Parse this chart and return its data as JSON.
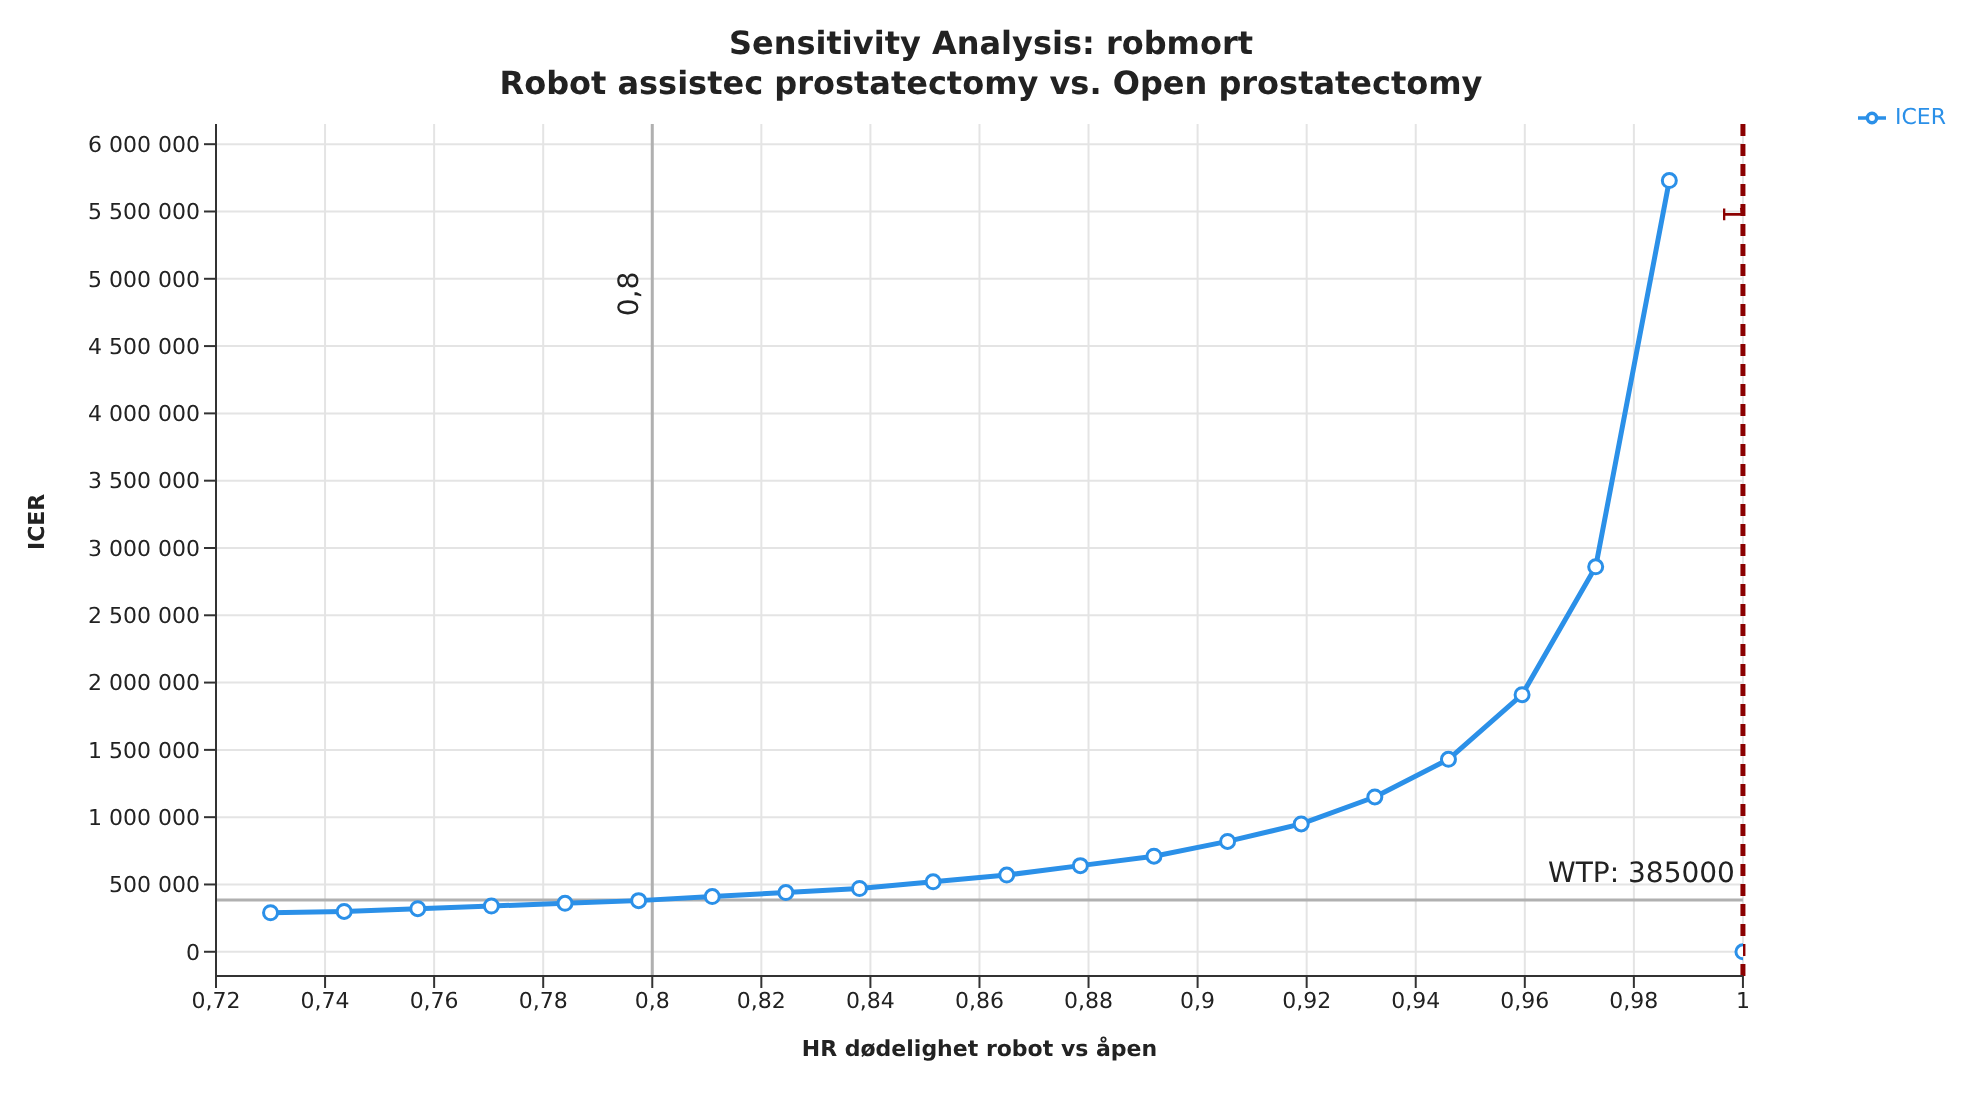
{
  "chart_data": {
    "type": "line",
    "title": "Sensitivity Analysis: robmort",
    "subtitle": "Robot assistec prostatectomy vs. Open prostatectomy",
    "xlabel": "HR dødelighet robot vs åpen",
    "ylabel": "ICER",
    "x": [
      0.73,
      0.7435,
      0.757,
      0.7705,
      0.784,
      0.7975,
      0.811,
      0.8245,
      0.838,
      0.8515,
      0.865,
      0.8785,
      0.892,
      0.9055,
      0.919,
      0.9325,
      0.946,
      0.9595,
      0.973,
      0.9865
    ],
    "series": [
      {
        "name": "ICER",
        "color": "#2b90e8",
        "values": [
          290000,
          300000,
          320000,
          340000,
          360000,
          380000,
          410000,
          440000,
          470000,
          520000,
          570000,
          640000,
          710000,
          820000,
          950000,
          1150000,
          1430000,
          1910000,
          2860000,
          5730000
        ]
      },
      {
        "type": "scatter",
        "color": "#2b90e8",
        "x": [
          1.0
        ],
        "values": [
          0
        ]
      }
    ],
    "xlim": [
      0.72,
      1.0
    ],
    "xticks": [
      {
        "value": 0.72,
        "label": "0,72"
      },
      {
        "value": 0.74,
        "label": "0,74"
      },
      {
        "value": 0.76,
        "label": "0,76"
      },
      {
        "value": 0.78,
        "label": "0,78"
      },
      {
        "value": 0.8,
        "label": "0,8"
      },
      {
        "value": 0.82,
        "label": "0,82"
      },
      {
        "value": 0.84,
        "label": "0,84"
      },
      {
        "value": 0.86,
        "label": "0,86"
      },
      {
        "value": 0.88,
        "label": "0,88"
      },
      {
        "value": 0.9,
        "label": "0,9"
      },
      {
        "value": 0.92,
        "label": "0,92"
      },
      {
        "value": 0.94,
        "label": "0,94"
      },
      {
        "value": 0.96,
        "label": "0,96"
      },
      {
        "value": 0.98,
        "label": "0,98"
      },
      1
    ],
    "ylim": [
      -180000,
      6150000
    ],
    "yticks": [
      0,
      {
        "value": 500000,
        "label": "500 000"
      },
      {
        "value": 1000000,
        "label": "1 000 000"
      },
      {
        "value": 1500000,
        "label": "1 500 000"
      },
      {
        "value": 2000000,
        "label": "2 000 000"
      },
      {
        "value": 2500000,
        "label": "2 500 000"
      },
      {
        "value": 3000000,
        "label": "3 000 000"
      },
      {
        "value": 3500000,
        "label": "3 500 000"
      },
      {
        "value": 4000000,
        "label": "4 000 000"
      },
      {
        "value": 4500000,
        "label": "4 500 000"
      },
      {
        "value": 5000000,
        "label": "5 000 000"
      },
      {
        "value": 5500000,
        "label": "5 500 000"
      },
      {
        "value": 6000000,
        "label": "6 000 000"
      }
    ],
    "ref_lines": [
      {
        "axis": "x",
        "value": 0.8,
        "label": "0,8",
        "color": "#b0b0b0",
        "line_style": "solid"
      },
      {
        "axis": "x",
        "value": 1,
        "label": "1",
        "color": "#8b0000",
        "line_style": "dashed"
      },
      {
        "axis": "y",
        "value": 385000,
        "label": "WTP: 385000",
        "color": "#b0b0b0",
        "line_style": "solid"
      }
    ],
    "grid": true,
    "legend": "top right",
    "marker": "circle",
    "line_style": "solid"
  }
}
